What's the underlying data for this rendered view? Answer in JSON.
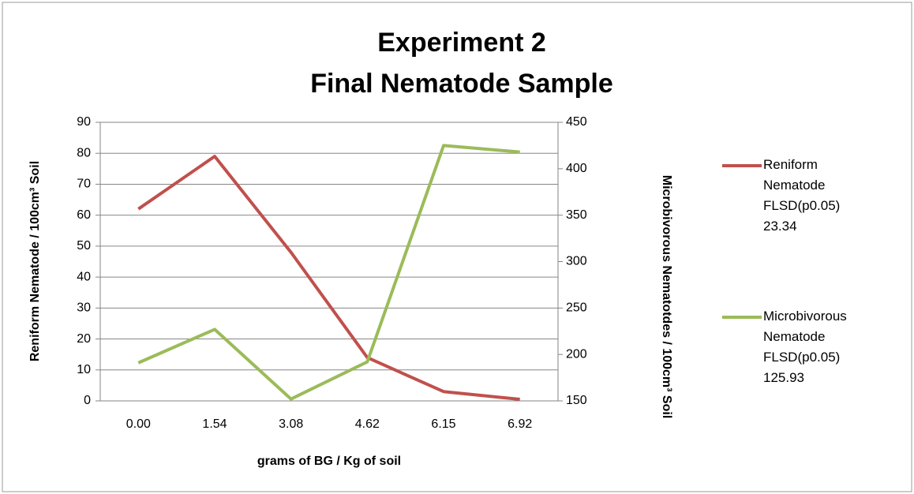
{
  "chart_data": {
    "type": "line",
    "title": [
      "Experiment 2",
      "Final Nematode Sample"
    ],
    "x_label": "grams of BG / Kg of soil",
    "y_label": "Reniform Nematode / 100cm³ Soil",
    "y2_label": "Microbivorous Nematotdes / 100cm³ Soil",
    "categories": [
      "0.00",
      "1.54",
      "3.08",
      "4.62",
      "6.15",
      "6.92"
    ],
    "series": [
      {
        "name": "Reniform Nematode FLSD(p0.05) 23.34",
        "color": "#c0504d",
        "values": [
          62,
          79,
          48,
          14,
          3,
          0.5
        ]
      },
      {
        "name": "Microbivorous Nematode FLSD(p0.05) 125.93",
        "color": "#9bbb59",
        "axis": "y2",
        "values": [
          191,
          227,
          152,
          192,
          425,
          418
        ]
      }
    ],
    "ylim": [
      0,
      90
    ],
    "yticks": [
      0,
      10,
      20,
      30,
      40,
      50,
      60,
      70,
      80,
      90
    ],
    "y2lim": [
      150,
      450
    ],
    "y2ticks": [
      150,
      200,
      250,
      300,
      350,
      400,
      450
    ],
    "grid": true,
    "legend": "right"
  }
}
